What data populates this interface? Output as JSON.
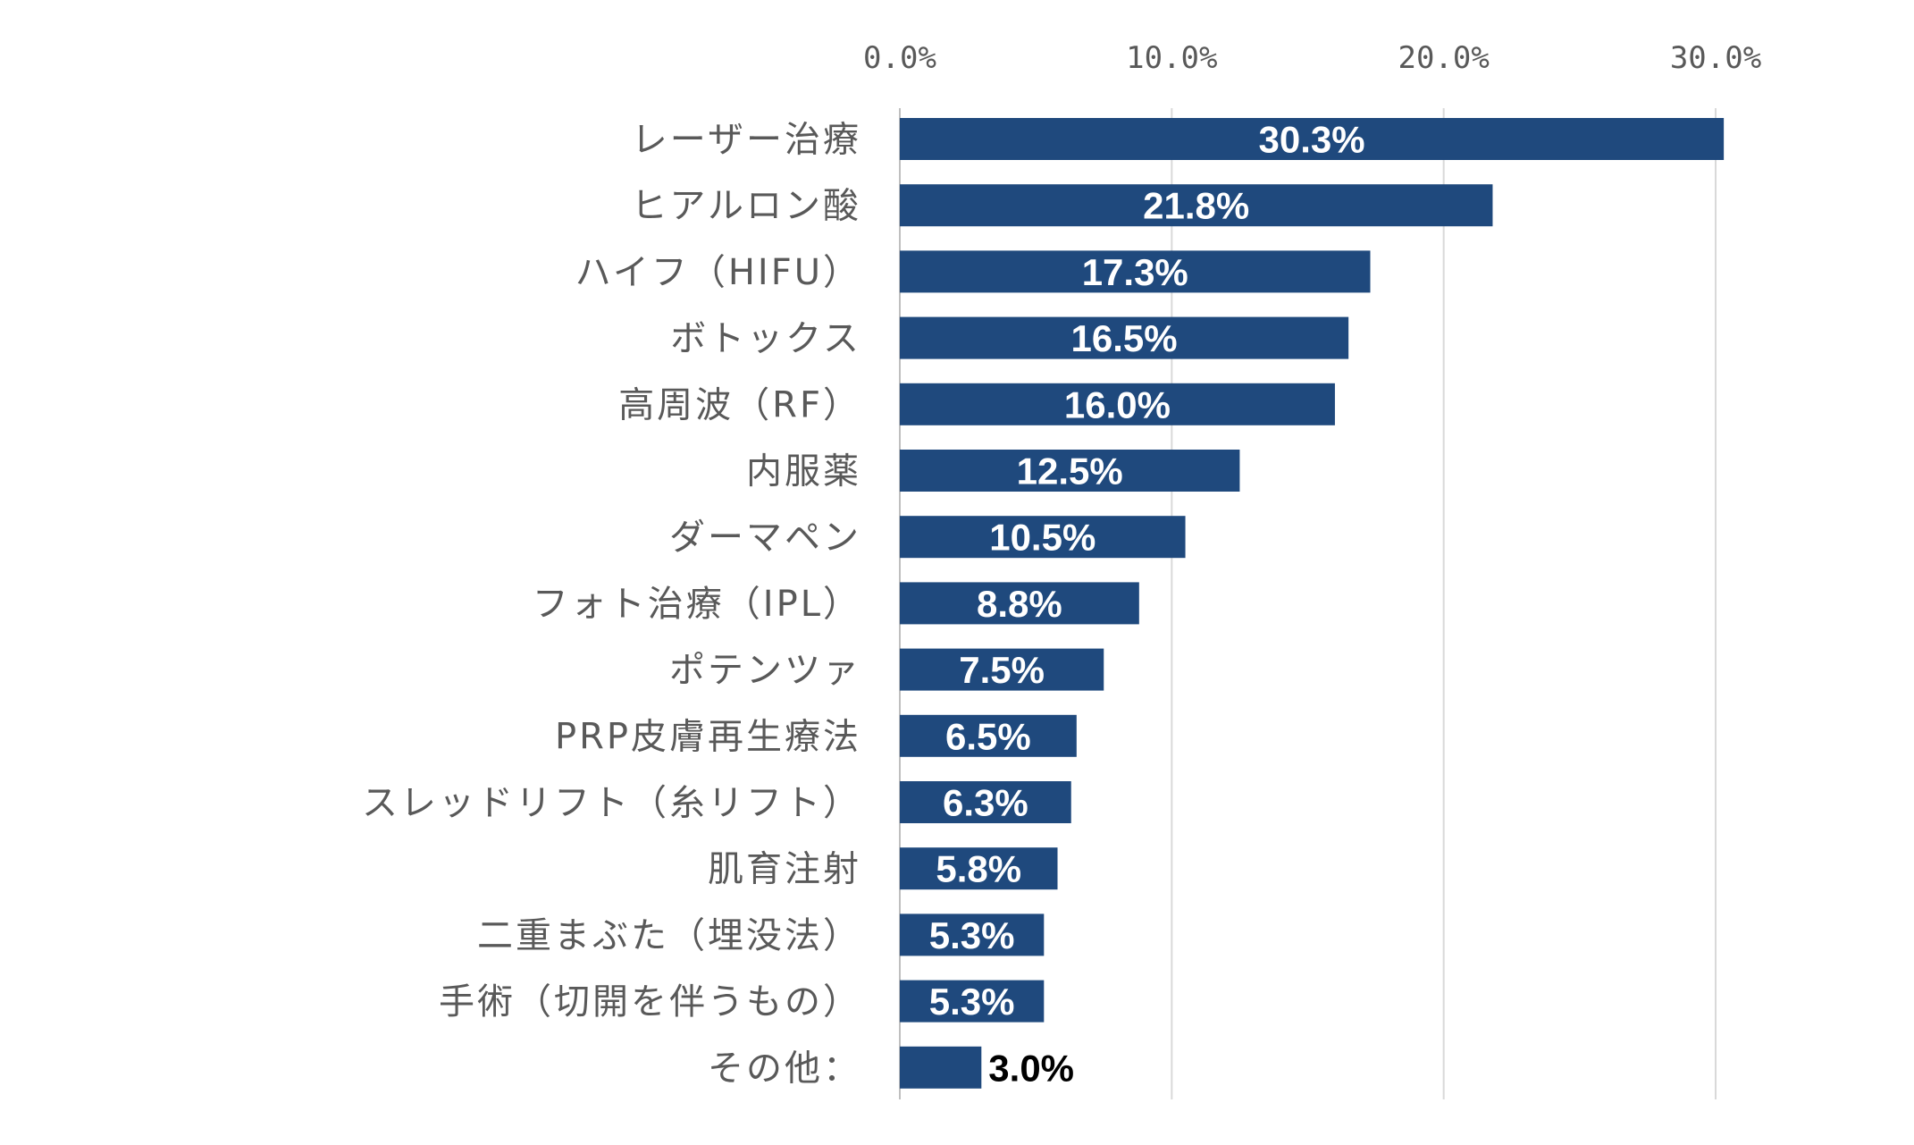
{
  "chart_data": {
    "type": "bar",
    "orientation": "horizontal",
    "categories": [
      "レーザー治療",
      "ヒアルロン酸",
      "ハイフ（HIFU）",
      "ボトックス",
      "高周波（RF）",
      "内服薬",
      "ダーマペン",
      "フォト治療（IPL）",
      "ポテンツァ",
      "PRP皮膚再生療法",
      "スレッドリフト（糸リフト）",
      "肌育注射",
      "二重まぶた（埋没法）",
      "手術（切開を伴うもの）",
      "その他："
    ],
    "values": [
      30.3,
      21.8,
      17.3,
      16.5,
      16.0,
      12.5,
      10.5,
      8.8,
      7.5,
      6.5,
      6.3,
      5.8,
      5.3,
      5.3,
      3.0
    ],
    "data_labels": [
      "30.3%",
      "21.8%",
      "17.3%",
      "16.5%",
      "16.0%",
      "12.5%",
      "10.5%",
      "8.8%",
      "7.5%",
      "6.5%",
      "6.3%",
      "5.8%",
      "5.3%",
      "5.3%",
      "3.0%"
    ],
    "xlim": [
      0,
      30
    ],
    "x_ticks": [
      "0.0%",
      "10.0%",
      "20.0%",
      "30.0%"
    ],
    "x_tick_values": [
      0,
      10,
      20,
      30
    ],
    "x_axis_position": "top",
    "grid": true,
    "bar_color": "#1f497d",
    "title": "",
    "xlabel": "",
    "ylabel": ""
  }
}
